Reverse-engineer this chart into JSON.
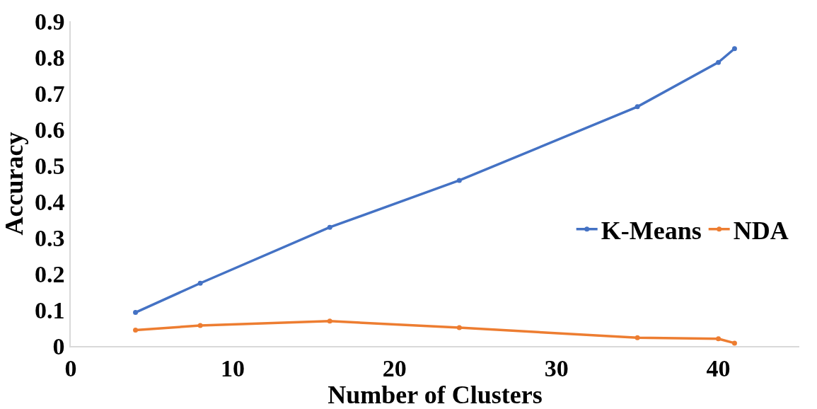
{
  "chart_data": {
    "type": "line",
    "xlabel": "Number of Clusters",
    "ylabel": "Accuracy",
    "x": [
      4,
      8,
      16,
      24,
      35,
      40,
      41
    ],
    "series": [
      {
        "name": "K-Means",
        "color": "#4472c4",
        "values": [
          0.093,
          0.174,
          0.329,
          0.459,
          0.663,
          0.786,
          0.824
        ]
      },
      {
        "name": "NDA",
        "color": "#ed7d31",
        "values": [
          0.044,
          0.057,
          0.069,
          0.051,
          0.023,
          0.02,
          0.008
        ]
      }
    ],
    "xlim": [
      0,
      45
    ],
    "xticks": [
      0,
      10,
      20,
      30,
      40
    ],
    "ylim": [
      0,
      0.9
    ],
    "yticks": [
      0,
      0.1,
      0.2,
      0.3,
      0.4,
      0.5,
      0.6,
      0.7,
      0.8,
      0.9
    ],
    "legend": "right",
    "marker": "circle",
    "line_style": "solid"
  }
}
